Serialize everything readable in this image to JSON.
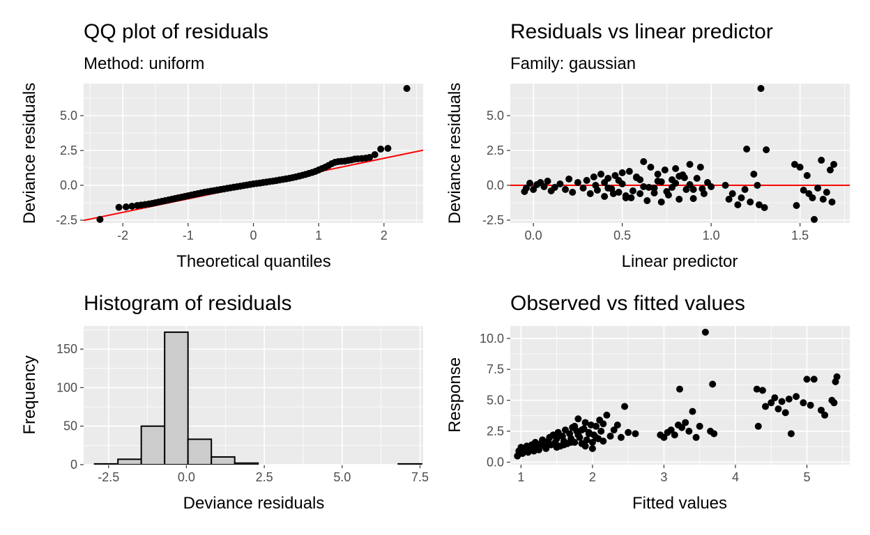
{
  "chart_data": [
    {
      "type": "scatter",
      "title": "QQ plot of residuals",
      "subtitle": "Method: uniform",
      "xlabel": "Theoretical quantiles",
      "ylabel": "Deviance residuals",
      "xlim": [
        -2.6,
        2.6
      ],
      "ylim": [
        -2.7,
        7.3
      ],
      "x_ticks": [
        -2,
        -1,
        0,
        1,
        2
      ],
      "x_tick_labels": [
        "-2",
        "-1",
        "0",
        "1",
        "2"
      ],
      "y_ticks": [
        -2.5,
        0,
        2.5,
        5
      ],
      "y_tick_labels": [
        "-2.5",
        "0.0",
        "2.5",
        "5.0"
      ],
      "reference_line": {
        "slope": 0.97,
        "intercept": 0.0,
        "color": "#ff0000"
      },
      "point_color": "#000000",
      "grid": true,
      "points": {
        "x": [
          -2.35,
          -2.06,
          -1.95,
          -1.86,
          -1.78,
          -1.72,
          -1.66,
          -1.6,
          -1.55,
          -1.5,
          -1.45,
          -1.4,
          -1.35,
          -1.3,
          -1.25,
          -1.2,
          -1.15,
          -1.1,
          -1.05,
          -1.0,
          -0.95,
          -0.9,
          -0.85,
          -0.8,
          -0.75,
          -0.7,
          -0.65,
          -0.6,
          -0.55,
          -0.5,
          -0.45,
          -0.4,
          -0.35,
          -0.3,
          -0.25,
          -0.2,
          -0.15,
          -0.1,
          -0.05,
          0.0,
          0.05,
          0.1,
          0.15,
          0.2,
          0.25,
          0.3,
          0.35,
          0.4,
          0.45,
          0.5,
          0.55,
          0.6,
          0.65,
          0.7,
          0.75,
          0.8,
          0.85,
          0.9,
          0.95,
          1.0,
          1.05,
          1.1,
          1.15,
          1.2,
          1.25,
          1.3,
          1.35,
          1.4,
          1.45,
          1.5,
          1.55,
          1.6,
          1.66,
          1.72,
          1.78,
          1.86,
          1.95,
          2.06,
          2.35
        ],
        "y": [
          -2.45,
          -1.58,
          -1.55,
          -1.5,
          -1.45,
          -1.42,
          -1.38,
          -1.34,
          -1.3,
          -1.25,
          -1.2,
          -1.15,
          -1.1,
          -1.05,
          -1.0,
          -0.95,
          -0.9,
          -0.85,
          -0.8,
          -0.75,
          -0.7,
          -0.65,
          -0.6,
          -0.55,
          -0.5,
          -0.46,
          -0.42,
          -0.38,
          -0.34,
          -0.3,
          -0.26,
          -0.22,
          -0.18,
          -0.14,
          -0.1,
          -0.06,
          -0.02,
          0.02,
          0.06,
          0.1,
          0.13,
          0.16,
          0.2,
          0.23,
          0.27,
          0.3,
          0.34,
          0.38,
          0.42,
          0.46,
          0.5,
          0.55,
          0.6,
          0.66,
          0.72,
          0.78,
          0.85,
          0.92,
          1.0,
          1.1,
          1.2,
          1.3,
          1.42,
          1.55,
          1.65,
          1.7,
          1.72,
          1.74,
          1.78,
          1.82,
          1.88,
          1.9,
          1.92,
          1.95,
          2.0,
          2.2,
          2.6,
          2.65,
          6.95
        ]
      }
    },
    {
      "type": "scatter",
      "title": "Residuals vs linear predictor",
      "subtitle": "Family: gaussian",
      "xlabel": "Linear predictor",
      "ylabel": "Deviance residuals",
      "xlim": [
        -0.13,
        1.78
      ],
      "ylim": [
        -2.7,
        7.3
      ],
      "x_ticks": [
        0.0,
        0.5,
        1.0,
        1.5
      ],
      "x_tick_labels": [
        "0.0",
        "0.5",
        "1.0",
        "1.5"
      ],
      "y_ticks": [
        -2.5,
        0,
        2.5,
        5
      ],
      "y_tick_labels": [
        "-2.5",
        "0.0",
        "2.5",
        "5.0"
      ],
      "reference_line": {
        "slope": 0,
        "intercept": 0,
        "color": "#ff0000"
      },
      "point_color": "#000000",
      "grid": true,
      "points": {
        "x": [
          -0.05,
          -0.04,
          -0.02,
          0.0,
          0.02,
          0.04,
          0.06,
          0.08,
          0.1,
          0.12,
          0.15,
          0.18,
          0.2,
          0.22,
          0.25,
          0.28,
          0.3,
          0.32,
          0.34,
          0.36,
          0.38,
          0.4,
          0.42,
          0.44,
          0.46,
          0.48,
          0.5,
          0.52,
          0.54,
          0.56,
          0.58,
          0.6,
          0.62,
          0.64,
          0.66,
          0.68,
          0.7,
          0.72,
          0.74,
          0.76,
          0.78,
          0.8,
          0.82,
          0.84,
          0.86,
          0.88,
          0.9,
          0.92,
          0.94,
          0.96,
          0.98,
          1.0,
          0.4,
          0.45,
          0.5,
          0.55,
          0.6,
          0.65,
          0.7,
          0.75,
          0.8,
          0.85,
          0.9,
          0.35,
          0.42,
          0.48,
          0.52,
          0.58,
          0.62,
          0.68,
          0.72,
          0.78,
          0.82,
          0.88,
          0.95,
          1.08,
          1.1,
          1.12,
          1.15,
          1.17,
          1.19,
          1.2,
          1.22,
          1.24,
          1.26,
          1.27,
          1.28,
          1.3,
          1.31,
          1.47,
          1.48,
          1.5,
          1.52,
          1.54,
          1.55,
          1.57,
          1.58,
          1.6,
          1.62,
          1.63,
          1.65,
          1.67,
          1.68,
          1.69
        ],
        "y": [
          -0.45,
          -0.2,
          0.15,
          -0.3,
          0.05,
          0.2,
          -0.1,
          0.3,
          -0.4,
          -0.15,
          0.1,
          -0.3,
          0.45,
          -0.5,
          0.2,
          -0.2,
          0.35,
          -0.6,
          0.6,
          -0.35,
          0.8,
          -0.8,
          0.5,
          -0.25,
          0.7,
          -0.5,
          0.9,
          -0.9,
          1.0,
          -0.4,
          0.6,
          -0.6,
          1.7,
          -1.1,
          1.3,
          -0.2,
          0.8,
          -1.2,
          1.1,
          -0.7,
          0.4,
          1.2,
          -1.0,
          0.75,
          -0.3,
          1.5,
          -0.95,
          0.5,
          1.3,
          -0.6,
          0.2,
          -0.1,
          0.2,
          -0.6,
          0.1,
          -0.9,
          0.4,
          -0.15,
          0.3,
          -0.45,
          0.15,
          0.55,
          -0.3,
          0.0,
          -0.2,
          0.35,
          -0.75,
          0.55,
          -0.1,
          -0.55,
          0.25,
          -0.15,
          0.65,
          0.05,
          -0.25,
          0.0,
          -1.0,
          -0.6,
          -1.4,
          -0.9,
          -0.3,
          2.6,
          -1.2,
          0.8,
          0.0,
          -1.4,
          6.95,
          -1.6,
          2.55,
          1.5,
          -1.45,
          1.3,
          -0.35,
          0.7,
          -0.6,
          -0.9,
          -2.45,
          -0.2,
          1.8,
          -1.0,
          -0.5,
          1.1,
          -1.2,
          1.5
        ],
        "x_extra_comment": ""
      }
    },
    {
      "type": "bar",
      "title": "Histogram of residuals",
      "xlabel": "Deviance residuals",
      "ylabel": "Frequency",
      "xlim": [
        -3.3,
        7.6
      ],
      "ylim": [
        0,
        180
      ],
      "x_ticks": [
        -2.5,
        0,
        2.5,
        5,
        7.5
      ],
      "x_tick_labels": [
        "-2.5",
        "0.0",
        "2.5",
        "5.0",
        "7.5"
      ],
      "y_ticks": [
        0,
        50,
        100,
        150
      ],
      "y_tick_labels": [
        "0",
        "50",
        "100",
        "150"
      ],
      "bin_edges": [
        -2.95,
        -2.2,
        -1.45,
        -0.7,
        0.05,
        0.8,
        1.55,
        2.3,
        3.05,
        3.8,
        4.55,
        5.3,
        6.05,
        6.8,
        7.55
      ],
      "values": [
        1,
        7,
        50,
        172,
        33,
        10,
        2,
        0,
        0,
        0,
        0,
        0,
        0,
        1
      ],
      "bar_fill": "#cccccc",
      "bar_stroke": "#000000",
      "grid": true
    },
    {
      "type": "scatter",
      "title": "Observed vs fitted values",
      "xlabel": "Fitted values",
      "ylabel": "Response",
      "xlim": [
        0.85,
        5.6
      ],
      "ylim": [
        -0.2,
        11.0
      ],
      "x_ticks": [
        1,
        2,
        3,
        4,
        5
      ],
      "x_tick_labels": [
        "1",
        "2",
        "3",
        "4",
        "5"
      ],
      "y_ticks": [
        0,
        2.5,
        5,
        7.5,
        10
      ],
      "y_tick_labels": [
        "0.0",
        "2.5",
        "5.0",
        "7.5",
        "10.0"
      ],
      "point_color": "#000000",
      "grid": true,
      "points": {
        "x": [
          0.95,
          0.97,
          1.0,
          1.02,
          1.05,
          1.08,
          1.1,
          1.12,
          1.15,
          1.18,
          1.2,
          1.22,
          1.25,
          1.28,
          1.3,
          1.33,
          1.35,
          1.38,
          1.4,
          1.42,
          1.45,
          1.48,
          1.5,
          1.52,
          1.55,
          1.58,
          1.6,
          1.62,
          1.65,
          1.68,
          1.7,
          1.72,
          1.75,
          1.78,
          1.8,
          1.82,
          1.85,
          1.88,
          1.9,
          1.92,
          1.95,
          1.98,
          2.0,
          2.02,
          2.05,
          2.08,
          2.1,
          2.12,
          2.15,
          2.2,
          2.25,
          2.3,
          2.35,
          2.4,
          2.45,
          2.5,
          2.6,
          1.5,
          1.6,
          1.7,
          1.8,
          1.9,
          2.0,
          1.75,
          1.85,
          1.95,
          2.05,
          2.15,
          2.95,
          3.0,
          3.05,
          3.1,
          3.15,
          3.2,
          3.22,
          3.25,
          3.3,
          3.35,
          3.4,
          3.45,
          3.5,
          3.58,
          3.65,
          3.68,
          3.7,
          4.3,
          4.32,
          4.38,
          4.42,
          4.5,
          4.55,
          4.6,
          4.65,
          4.7,
          4.75,
          4.78,
          4.85,
          4.95,
          5.0,
          5.05,
          5.1,
          5.2,
          5.25,
          5.35,
          5.38,
          5.4,
          5.42
        ],
        "y": [
          0.5,
          0.9,
          1.2,
          0.7,
          1.0,
          1.3,
          0.8,
          1.1,
          1.4,
          0.9,
          1.6,
          1.2,
          1.0,
          1.5,
          1.8,
          1.3,
          1.1,
          1.7,
          2.0,
          1.4,
          2.2,
          1.6,
          1.9,
          2.4,
          1.3,
          2.1,
          1.7,
          2.6,
          1.5,
          2.3,
          1.9,
          2.8,
          1.6,
          2.5,
          3.5,
          2.0,
          1.5,
          2.7,
          3.2,
          1.8,
          2.4,
          3.0,
          1.6,
          2.2,
          2.9,
          1.9,
          3.4,
          2.5,
          1.7,
          3.8,
          2.1,
          2.6,
          3.0,
          2.0,
          4.5,
          2.4,
          2.3,
          1.2,
          1.4,
          1.6,
          2.2,
          1.3,
          1.1,
          2.9,
          2.6,
          2.3,
          2.0,
          3.1,
          2.2,
          2.0,
          2.4,
          2.6,
          2.2,
          3.0,
          5.9,
          2.8,
          3.2,
          2.5,
          4.1,
          2.0,
          2.9,
          10.5,
          2.5,
          6.3,
          2.3,
          5.9,
          2.9,
          5.8,
          4.5,
          4.8,
          5.2,
          4.3,
          4.9,
          4.0,
          5.1,
          2.3,
          5.3,
          4.8,
          6.7,
          4.6,
          6.7,
          4.2,
          3.8,
          5.0,
          4.8,
          6.5,
          6.9
        ]
      }
    }
  ]
}
